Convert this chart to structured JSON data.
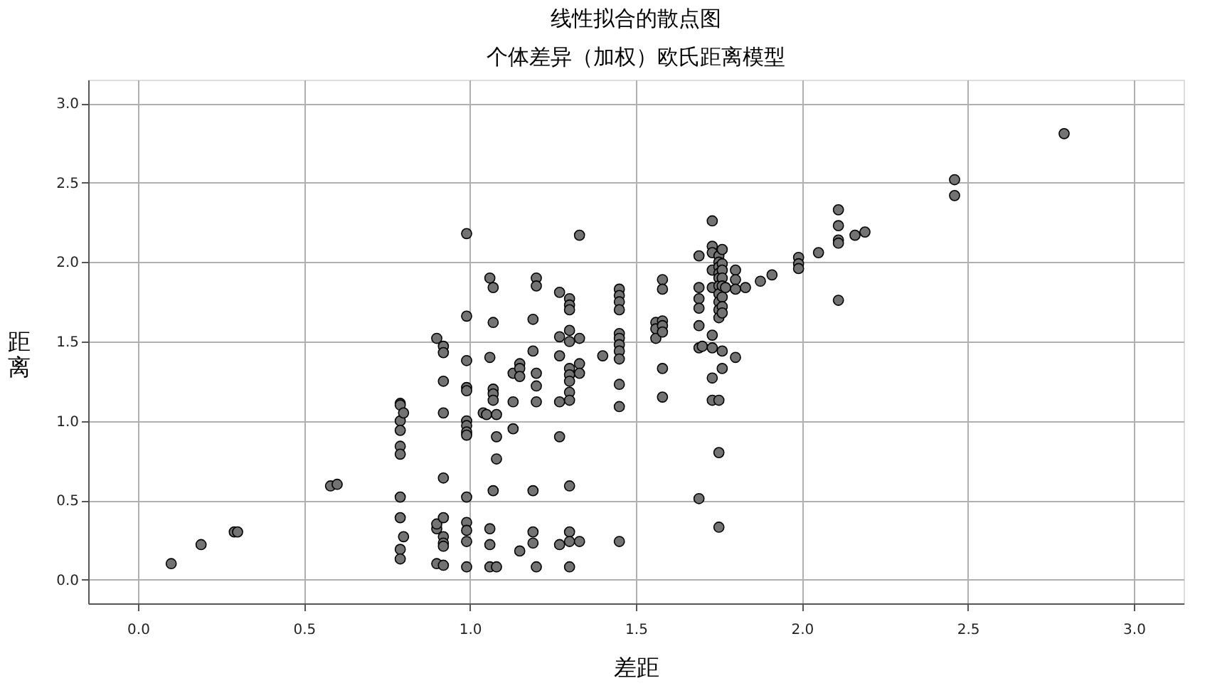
{
  "chart_data": {
    "type": "scatter",
    "title": "线性拟合的散点图",
    "subtitle": "个体差异（加权）欧氏距离模型",
    "xlabel": "差距",
    "ylabel": "距离",
    "series": [
      {
        "color": "#737373",
        "x": [
          0.1,
          0.19,
          0.29,
          0.3,
          0.58,
          0.6,
          0.79,
          0.79,
          0.79,
          0.79,
          0.79,
          0.79,
          0.79,
          0.79,
          0.79,
          0.79,
          0.8,
          0.8,
          0.9,
          0.9,
          0.9,
          0.9,
          0.92,
          0.92,
          0.92,
          0.92,
          0.92,
          0.92,
          0.92,
          0.92,
          0.92,
          0.92,
          0.99,
          0.99,
          0.99,
          0.99,
          0.99,
          0.99,
          0.99,
          0.99,
          0.99,
          0.99,
          0.99,
          0.99,
          0.99,
          0.99,
          1.04,
          1.05,
          1.06,
          1.06,
          1.06,
          1.06,
          1.06,
          1.07,
          1.07,
          1.07,
          1.07,
          1.07,
          1.07,
          1.08,
          1.08,
          1.08,
          1.08,
          1.13,
          1.13,
          1.13,
          1.15,
          1.15,
          1.15,
          1.15,
          1.19,
          1.19,
          1.19,
          1.19,
          1.19,
          1.2,
          1.2,
          1.2,
          1.2,
          1.2,
          1.2,
          1.27,
          1.27,
          1.27,
          1.27,
          1.27,
          1.27,
          1.3,
          1.3,
          1.3,
          1.3,
          1.3,
          1.3,
          1.3,
          1.3,
          1.3,
          1.3,
          1.3,
          1.3,
          1.3,
          1.3,
          1.33,
          1.33,
          1.33,
          1.33,
          1.33,
          1.4,
          1.45,
          1.45,
          1.45,
          1.45,
          1.45,
          1.45,
          1.45,
          1.45,
          1.45,
          1.45,
          1.45,
          1.45,
          1.56,
          1.56,
          1.56,
          1.58,
          1.58,
          1.58,
          1.58,
          1.58,
          1.58,
          1.58,
          1.69,
          1.69,
          1.69,
          1.69,
          1.69,
          1.69,
          1.69,
          1.7,
          1.73,
          1.73,
          1.73,
          1.73,
          1.73,
          1.73,
          1.73,
          1.73,
          1.73,
          1.75,
          1.75,
          1.75,
          1.75,
          1.75,
          1.75,
          1.75,
          1.75,
          1.75,
          1.75,
          1.75,
          1.75,
          1.75,
          1.76,
          1.76,
          1.76,
          1.76,
          1.76,
          1.76,
          1.76,
          1.76,
          1.76,
          1.76,
          1.77,
          1.8,
          1.8,
          1.8,
          1.8,
          1.83,
          1.875,
          1.91,
          1.99,
          1.99,
          1.99,
          2.05,
          2.11,
          2.11,
          2.11,
          2.11,
          2.11,
          2.16,
          2.19,
          2.46,
          2.46,
          2.79
        ],
        "values": [
          0.1,
          0.22,
          0.3,
          0.3,
          0.59,
          0.6,
          1.11,
          1.1,
          1.0,
          0.94,
          0.84,
          0.79,
          0.52,
          0.39,
          0.19,
          0.13,
          1.05,
          0.27,
          1.52,
          0.32,
          0.1,
          0.35,
          1.47,
          1.43,
          1.25,
          1.05,
          0.64,
          0.39,
          0.27,
          0.23,
          0.09,
          0.21,
          2.18,
          1.66,
          1.38,
          1.21,
          1.19,
          1.0,
          0.97,
          0.93,
          0.91,
          0.52,
          0.36,
          0.31,
          0.24,
          0.08,
          1.05,
          1.04,
          1.9,
          1.4,
          0.32,
          0.22,
          0.08,
          1.84,
          1.62,
          1.2,
          1.17,
          1.13,
          0.56,
          1.04,
          0.9,
          0.76,
          0.08,
          1.3,
          1.12,
          0.95,
          1.36,
          1.33,
          1.28,
          0.18,
          1.64,
          1.44,
          0.56,
          0.3,
          0.23,
          1.9,
          1.85,
          1.3,
          1.22,
          1.12,
          0.08,
          1.81,
          1.53,
          1.41,
          1.12,
          0.9,
          0.22,
          1.77,
          1.73,
          1.7,
          1.57,
          1.5,
          1.33,
          1.29,
          1.25,
          1.18,
          1.13,
          0.59,
          0.3,
          0.24,
          0.08,
          2.17,
          1.52,
          1.36,
          1.3,
          0.24,
          1.41,
          1.83,
          1.79,
          1.75,
          1.7,
          1.55,
          1.52,
          1.48,
          1.44,
          1.39,
          1.23,
          1.09,
          0.24,
          1.62,
          1.58,
          1.52,
          1.89,
          1.83,
          1.63,
          1.6,
          1.56,
          1.33,
          1.15,
          2.04,
          1.77,
          1.6,
          1.46,
          0.51,
          1.84,
          1.71,
          1.47,
          2.26,
          2.1,
          2.06,
          1.95,
          1.84,
          1.54,
          1.46,
          1.27,
          1.13,
          2.04,
          2.0,
          1.97,
          1.93,
          1.9,
          1.85,
          1.8,
          1.75,
          1.7,
          1.65,
          1.13,
          0.8,
          0.33,
          2.08,
          1.99,
          1.95,
          1.9,
          1.85,
          1.78,
          1.72,
          1.68,
          1.44,
          1.33,
          1.84,
          1.95,
          1.89,
          1.83,
          1.4,
          1.84,
          1.88,
          1.92,
          2.03,
          1.99,
          1.96,
          2.06,
          2.33,
          2.23,
          2.14,
          2.12,
          1.76,
          2.17,
          2.19,
          2.52,
          2.42,
          2.81
        ]
      }
    ],
    "xlim": [
      -0.15,
      3.15
    ],
    "ylim": [
      -0.15,
      3.15
    ],
    "xticks": [
      {
        "value": 0,
        "label": "0.0"
      },
      {
        "value": 0.5,
        "label": "0.5"
      },
      {
        "value": 1,
        "label": "1.0"
      },
      {
        "value": 1.5,
        "label": "1.5"
      },
      {
        "value": 2,
        "label": "2.0"
      },
      {
        "value": 2.5,
        "label": "2.5"
      },
      {
        "value": 3,
        "label": "3.0"
      }
    ],
    "yticks": [
      {
        "value": 0,
        "label": "0.0"
      },
      {
        "value": 0.5,
        "label": "0.5"
      },
      {
        "value": 1,
        "label": "1.0"
      },
      {
        "value": 1.5,
        "label": "1.5"
      },
      {
        "value": 2,
        "label": "2.0"
      },
      {
        "value": 2.5,
        "label": "2.5"
      },
      {
        "value": 3,
        "label": "3.0"
      }
    ],
    "grid": true,
    "marker": "circle"
  }
}
